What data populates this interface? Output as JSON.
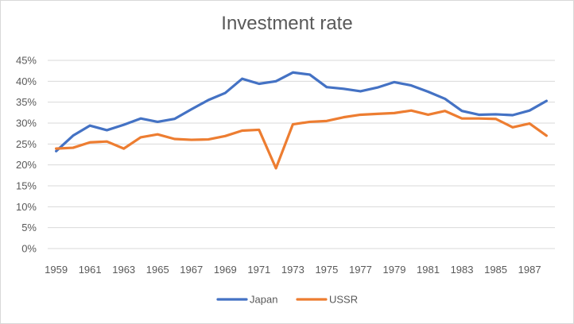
{
  "chart_data": {
    "type": "line",
    "title": "Investment rate",
    "xlabel": "",
    "ylabel": "",
    "x": [
      1959,
      1960,
      1961,
      1962,
      1963,
      1964,
      1965,
      1966,
      1967,
      1968,
      1969,
      1970,
      1971,
      1972,
      1973,
      1974,
      1975,
      1976,
      1977,
      1978,
      1979,
      1980,
      1981,
      1982,
      1983,
      1984,
      1985,
      1986,
      1987,
      1988
    ],
    "x_tick_labels": [
      "1959",
      "1961",
      "1963",
      "1965",
      "1967",
      "1969",
      "1971",
      "1973",
      "1975",
      "1977",
      "1979",
      "1981",
      "1983",
      "1985",
      "1987"
    ],
    "ylim": [
      0,
      45
    ],
    "y_ticks": [
      0,
      5,
      10,
      15,
      20,
      25,
      30,
      35,
      40,
      45
    ],
    "y_tick_labels": [
      "0%",
      "5%",
      "10%",
      "15%",
      "20%",
      "25%",
      "30%",
      "35%",
      "40%",
      "45%"
    ],
    "grid": "horizontal",
    "legend_position": "bottom",
    "series": [
      {
        "name": "Japan",
        "color": "#4472c4",
        "values": [
          23.3,
          27.0,
          29.4,
          28.3,
          29.6,
          31.1,
          30.3,
          31.0,
          33.3,
          35.5,
          37.2,
          40.6,
          39.4,
          40.0,
          42.1,
          41.6,
          38.6,
          38.2,
          37.6,
          38.5,
          39.8,
          39.0,
          37.5,
          35.8,
          32.9,
          32.0,
          32.1,
          31.9,
          33.0,
          35.3
        ]
      },
      {
        "name": "USSR",
        "color": "#ed7d31",
        "values": [
          23.9,
          24.1,
          25.4,
          25.6,
          23.9,
          26.6,
          27.3,
          26.2,
          26.0,
          26.1,
          26.9,
          28.2,
          28.4,
          19.2,
          29.7,
          30.3,
          30.5,
          31.4,
          32.0,
          32.2,
          32.4,
          33.0,
          32.0,
          32.9,
          31.1,
          31.1,
          31.0,
          29.0,
          29.9,
          27.0
        ]
      }
    ]
  }
}
